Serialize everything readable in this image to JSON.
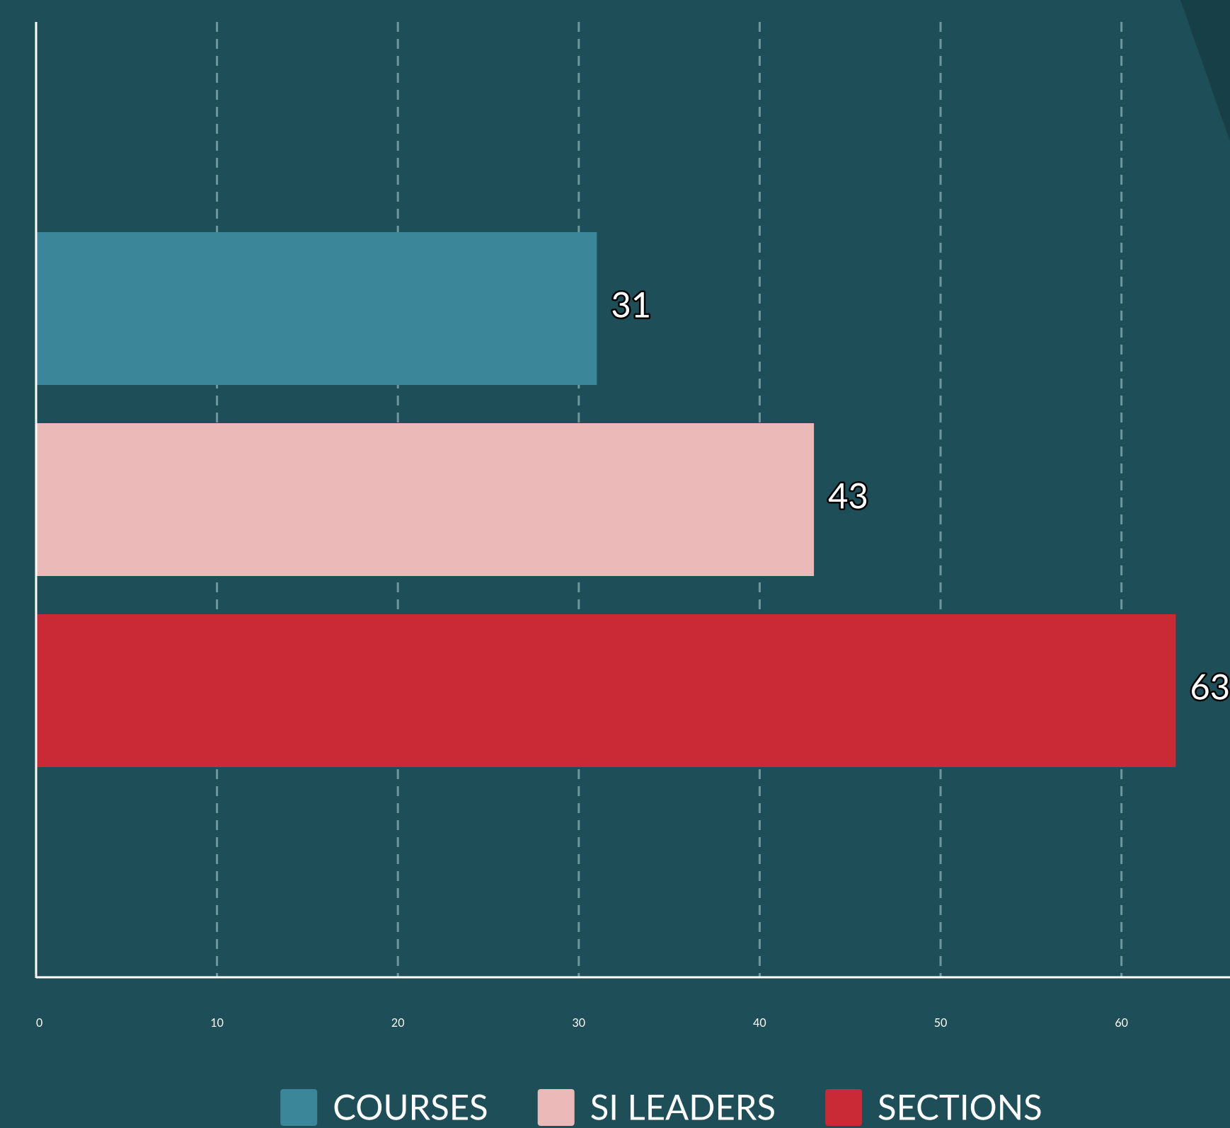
{
  "chart_data": {
    "type": "bar",
    "orientation": "horizontal",
    "series": [
      {
        "name": "COURSES",
        "color": "#3b8799",
        "values": [
          31
        ]
      },
      {
        "name": "SI LEADERS",
        "color": "#ebb9b8",
        "values": [
          43
        ]
      },
      {
        "name": "SECTIONS",
        "color": "#c92a36",
        "values": [
          63
        ]
      }
    ],
    "xlim": [
      0,
      66
    ],
    "xticks": [
      0,
      10,
      20,
      30,
      40,
      50,
      60
    ],
    "grid": true,
    "legend": "bottom"
  }
}
